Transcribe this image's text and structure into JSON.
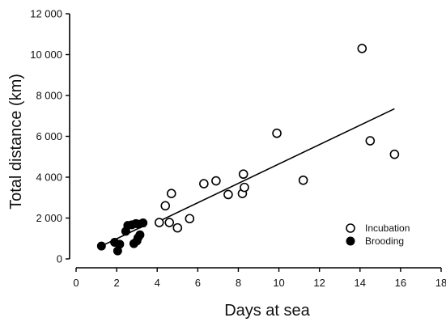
{
  "chart_data": {
    "type": "scatter",
    "title": "",
    "xlabel": "Days at sea",
    "ylabel": "Total distance (km)",
    "xlim": [
      0,
      18
    ],
    "ylim": [
      0,
      12000
    ],
    "xticks": [
      0,
      2,
      4,
      6,
      8,
      10,
      12,
      14,
      16,
      18
    ],
    "yticks": [
      0,
      2000,
      4000,
      6000,
      8000,
      10000,
      12000
    ],
    "xtick_labels": [
      "0",
      "2",
      "4",
      "6",
      "8",
      "10",
      "12",
      "14",
      "16",
      "18"
    ],
    "ytick_labels": [
      "0",
      "2 000",
      "4 000",
      "6 000",
      "8 000",
      "10 000",
      "12 000"
    ],
    "legend_position": "bottom-right",
    "series": [
      {
        "name": "Incubation",
        "marker": "open-circle",
        "color": "#000000",
        "points": [
          {
            "x": 4.1,
            "y": 1780
          },
          {
            "x": 4.6,
            "y": 1780
          },
          {
            "x": 5.0,
            "y": 1520
          },
          {
            "x": 4.4,
            "y": 2600
          },
          {
            "x": 4.7,
            "y": 3200
          },
          {
            "x": 5.6,
            "y": 1970
          },
          {
            "x": 6.3,
            "y": 3680
          },
          {
            "x": 6.9,
            "y": 3820
          },
          {
            "x": 7.5,
            "y": 3150
          },
          {
            "x": 8.2,
            "y": 3200
          },
          {
            "x": 8.3,
            "y": 3500
          },
          {
            "x": 8.25,
            "y": 4150
          },
          {
            "x": 9.9,
            "y": 6150
          },
          {
            "x": 11.2,
            "y": 3850
          },
          {
            "x": 14.1,
            "y": 10300
          },
          {
            "x": 14.5,
            "y": 5780
          },
          {
            "x": 15.7,
            "y": 5120
          }
        ]
      },
      {
        "name": "Brooding",
        "marker": "filled-circle",
        "color": "#000000",
        "points": [
          {
            "x": 1.25,
            "y": 630
          },
          {
            "x": 1.9,
            "y": 810
          },
          {
            "x": 2.05,
            "y": 390
          },
          {
            "x": 2.15,
            "y": 720
          },
          {
            "x": 2.45,
            "y": 1350
          },
          {
            "x": 2.55,
            "y": 1640
          },
          {
            "x": 2.75,
            "y": 1670
          },
          {
            "x": 2.85,
            "y": 750
          },
          {
            "x": 2.95,
            "y": 1730
          },
          {
            "x": 3.0,
            "y": 880
          },
          {
            "x": 3.05,
            "y": 1030
          },
          {
            "x": 3.1,
            "y": 1700
          },
          {
            "x": 3.15,
            "y": 1180
          },
          {
            "x": 3.3,
            "y": 1760
          }
        ]
      }
    ],
    "trendlines": [
      {
        "series": "Incubation",
        "x": [
          4.0,
          15.7
        ],
        "y": [
          1800,
          7350
        ]
      },
      {
        "series": "Brooding",
        "x": [
          1.25,
          3.3
        ],
        "y": [
          630,
          1600
        ]
      }
    ]
  }
}
